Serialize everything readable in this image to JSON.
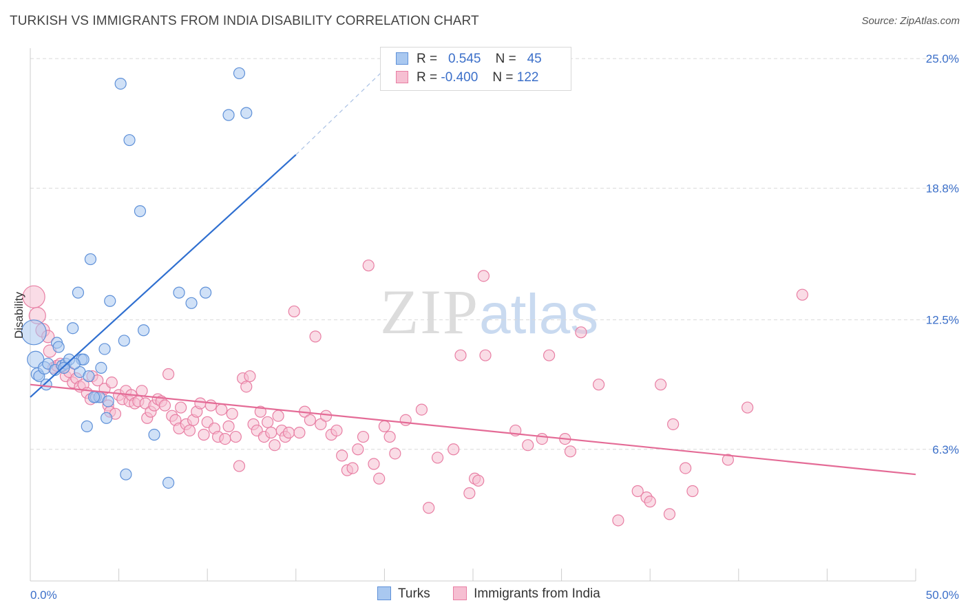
{
  "header": {
    "title": "TURKISH VS IMMIGRANTS FROM INDIA DISABILITY CORRELATION CHART",
    "source": "Source: ZipAtlas.com"
  },
  "watermark": {
    "zip": "ZIP",
    "atlas": "atlas"
  },
  "colors": {
    "turks_fill": "#a9c8f0",
    "turks_stroke": "#5e90d8",
    "turks_line": "#2f6fd0",
    "india_fill": "#f6bfd2",
    "india_stroke": "#e87ea3",
    "india_line": "#e46b96",
    "grid": "#d9d9d9",
    "axis_text": "#3b6fc9"
  },
  "legend": {
    "rows": [
      {
        "r_label": "R =",
        "r_value": "0.545",
        "n_label": "N =",
        "n_value": "45"
      },
      {
        "r_label": "R =",
        "r_value": "-0.400",
        "n_label": "N =",
        "n_value": "122"
      }
    ]
  },
  "bottom_legend": {
    "series1": "Turks",
    "series2": "Immigrants from India"
  },
  "chart_data": {
    "type": "scatter",
    "title": "TURKISH VS IMMIGRANTS FROM INDIA DISABILITY CORRELATION CHART",
    "ylabel": "Disability",
    "xlabel": "",
    "xlim": [
      0,
      50
    ],
    "ylim": [
      0,
      25.5
    ],
    "x_tick_labels": [
      "0.0%",
      "50.0%"
    ],
    "y_ticks": [
      6.3,
      12.5,
      18.8,
      25.0
    ],
    "y_tick_labels": [
      "6.3%",
      "12.5%",
      "18.8%",
      "25.0%"
    ],
    "grid": "horizontal dashed",
    "series": [
      {
        "name": "Turks",
        "R": 0.545,
        "N": 45,
        "trend": {
          "x": [
            0,
            15
          ],
          "y": [
            8.8,
            20.4
          ],
          "dashed_to": [
            21,
            25.3
          ]
        },
        "points": [
          [
            0.2,
            11.9,
            18
          ],
          [
            0.3,
            10.6,
            12
          ],
          [
            0.4,
            9.9,
            9
          ],
          [
            0.5,
            9.8,
            8
          ],
          [
            0.8,
            10.2,
            9
          ],
          [
            0.9,
            9.4,
            8
          ],
          [
            1.0,
            10.4,
            8
          ],
          [
            1.4,
            10.1,
            8
          ],
          [
            1.5,
            11.4,
            8
          ],
          [
            1.6,
            11.2,
            8
          ],
          [
            1.8,
            10.3,
            8
          ],
          [
            2.0,
            10.4,
            8
          ],
          [
            2.2,
            10.6,
            8
          ],
          [
            2.4,
            12.1,
            8
          ],
          [
            2.7,
            13.8,
            8
          ],
          [
            2.8,
            10.0,
            8
          ],
          [
            2.9,
            10.6,
            8
          ],
          [
            3.0,
            10.6,
            8
          ],
          [
            3.3,
            9.8,
            8
          ],
          [
            3.4,
            15.4,
            8
          ],
          [
            3.2,
            7.4,
            8
          ],
          [
            3.7,
            8.8,
            8
          ],
          [
            3.9,
            8.8,
            8
          ],
          [
            4.0,
            10.2,
            8
          ],
          [
            4.2,
            11.1,
            8
          ],
          [
            4.3,
            7.8,
            8
          ],
          [
            4.4,
            8.6,
            8
          ],
          [
            4.5,
            13.4,
            8
          ],
          [
            5.1,
            23.8,
            8
          ],
          [
            5.3,
            11.5,
            8
          ],
          [
            5.4,
            5.1,
            8
          ],
          [
            5.6,
            21.1,
            8
          ],
          [
            6.2,
            17.7,
            8
          ],
          [
            6.4,
            12.0,
            8
          ],
          [
            7.0,
            7.0,
            8
          ],
          [
            7.8,
            4.7,
            8
          ],
          [
            8.4,
            13.8,
            8
          ],
          [
            9.1,
            13.3,
            8
          ],
          [
            9.9,
            13.8,
            8
          ],
          [
            11.2,
            22.3,
            8
          ],
          [
            11.8,
            24.3,
            8
          ],
          [
            12.2,
            22.4,
            8
          ],
          [
            1.9,
            10.2,
            8
          ],
          [
            2.5,
            10.4,
            8
          ],
          [
            3.6,
            8.8,
            8
          ]
        ]
      },
      {
        "name": "Immigrants from India",
        "R": -0.4,
        "N": 122,
        "trend": {
          "x": [
            0,
            50
          ],
          "y": [
            9.4,
            5.1
          ]
        },
        "points": [
          [
            0.2,
            13.6,
            16
          ],
          [
            0.4,
            12.7,
            12
          ],
          [
            0.7,
            12.0,
            10
          ],
          [
            1.0,
            11.7,
            9
          ],
          [
            1.1,
            11.0,
            9
          ],
          [
            1.3,
            10.2,
            8
          ],
          [
            1.5,
            10.3,
            8
          ],
          [
            1.7,
            10.4,
            8
          ],
          [
            1.9,
            10.2,
            8
          ],
          [
            2.0,
            9.8,
            8
          ],
          [
            2.2,
            10.0,
            8
          ],
          [
            2.4,
            9.5,
            8
          ],
          [
            2.6,
            9.7,
            8
          ],
          [
            2.8,
            9.3,
            8
          ],
          [
            3.0,
            9.4,
            8
          ],
          [
            3.2,
            9.0,
            8
          ],
          [
            3.4,
            8.7,
            8
          ],
          [
            3.5,
            9.8,
            8
          ],
          [
            3.8,
            9.6,
            8
          ],
          [
            4.0,
            8.8,
            8
          ],
          [
            4.2,
            9.2,
            8
          ],
          [
            4.4,
            8.4,
            8
          ],
          [
            4.5,
            8.1,
            8
          ],
          [
            4.6,
            9.5,
            8
          ],
          [
            4.8,
            8.0,
            8
          ],
          [
            5.0,
            8.9,
            8
          ],
          [
            5.2,
            8.7,
            8
          ],
          [
            5.4,
            9.1,
            8
          ],
          [
            5.6,
            8.6,
            8
          ],
          [
            5.7,
            8.9,
            8
          ],
          [
            5.9,
            8.5,
            8
          ],
          [
            6.1,
            8.6,
            8
          ],
          [
            6.3,
            9.1,
            8
          ],
          [
            6.5,
            8.5,
            8
          ],
          [
            6.6,
            7.8,
            8
          ],
          [
            6.8,
            8.1,
            8
          ],
          [
            7.0,
            8.4,
            8
          ],
          [
            7.2,
            8.7,
            8
          ],
          [
            7.4,
            8.6,
            8
          ],
          [
            7.6,
            8.4,
            8
          ],
          [
            7.8,
            9.9,
            8
          ],
          [
            8.0,
            7.9,
            8
          ],
          [
            8.2,
            7.7,
            8
          ],
          [
            8.4,
            7.3,
            8
          ],
          [
            8.5,
            8.3,
            8
          ],
          [
            8.8,
            7.5,
            8
          ],
          [
            9.0,
            7.2,
            8
          ],
          [
            9.2,
            7.7,
            8
          ],
          [
            9.4,
            8.1,
            8
          ],
          [
            9.6,
            8.5,
            8
          ],
          [
            9.8,
            7.0,
            8
          ],
          [
            10.0,
            7.6,
            8
          ],
          [
            10.2,
            8.4,
            8
          ],
          [
            10.4,
            7.3,
            8
          ],
          [
            10.6,
            6.9,
            8
          ],
          [
            10.8,
            8.2,
            8
          ],
          [
            11.0,
            6.8,
            8
          ],
          [
            11.2,
            7.4,
            8
          ],
          [
            11.4,
            8.0,
            8
          ],
          [
            11.6,
            6.9,
            8
          ],
          [
            11.8,
            5.5,
            8
          ],
          [
            12.0,
            9.7,
            8
          ],
          [
            12.2,
            9.3,
            8
          ],
          [
            12.4,
            9.8,
            8
          ],
          [
            12.6,
            7.5,
            8
          ],
          [
            12.8,
            7.2,
            8
          ],
          [
            13.0,
            8.1,
            8
          ],
          [
            13.2,
            6.9,
            8
          ],
          [
            13.4,
            7.6,
            8
          ],
          [
            13.6,
            7.1,
            8
          ],
          [
            13.8,
            6.5,
            8
          ],
          [
            14.0,
            7.9,
            8
          ],
          [
            14.2,
            7.2,
            8
          ],
          [
            14.4,
            6.9,
            8
          ],
          [
            14.6,
            7.1,
            8
          ],
          [
            14.9,
            12.9,
            8
          ],
          [
            15.2,
            7.1,
            8
          ],
          [
            15.5,
            8.1,
            8
          ],
          [
            15.8,
            7.7,
            8
          ],
          [
            16.1,
            11.7,
            8
          ],
          [
            16.4,
            7.5,
            8
          ],
          [
            16.7,
            7.9,
            8
          ],
          [
            17.0,
            7.0,
            8
          ],
          [
            17.3,
            7.2,
            8
          ],
          [
            17.6,
            6.0,
            8
          ],
          [
            17.9,
            5.3,
            8
          ],
          [
            18.2,
            5.4,
            8
          ],
          [
            18.5,
            6.3,
            8
          ],
          [
            18.8,
            6.9,
            8
          ],
          [
            19.1,
            15.1,
            8
          ],
          [
            19.4,
            5.6,
            8
          ],
          [
            19.7,
            4.9,
            8
          ],
          [
            20.0,
            7.4,
            8
          ],
          [
            20.3,
            6.9,
            8
          ],
          [
            20.6,
            6.1,
            8
          ],
          [
            21.2,
            7.7,
            8
          ],
          [
            22.1,
            8.2,
            8
          ],
          [
            22.5,
            3.5,
            8
          ],
          [
            23.0,
            5.9,
            8
          ],
          [
            23.9,
            6.3,
            8
          ],
          [
            24.3,
            10.8,
            8
          ],
          [
            24.8,
            4.2,
            8
          ],
          [
            25.1,
            4.9,
            8
          ],
          [
            25.6,
            14.6,
            8
          ],
          [
            25.3,
            4.8,
            8
          ],
          [
            25.7,
            10.8,
            8
          ],
          [
            27.4,
            7.2,
            8
          ],
          [
            28.1,
            6.5,
            8
          ],
          [
            28.9,
            6.8,
            8
          ],
          [
            29.3,
            10.8,
            8
          ],
          [
            30.2,
            6.8,
            8
          ],
          [
            30.5,
            6.2,
            8
          ],
          [
            31.1,
            11.9,
            8
          ],
          [
            32.1,
            9.4,
            8
          ],
          [
            33.2,
            2.9,
            8
          ],
          [
            34.3,
            4.3,
            8
          ],
          [
            34.8,
            4.0,
            8
          ],
          [
            35.0,
            3.8,
            8
          ],
          [
            35.6,
            9.4,
            8
          ],
          [
            36.1,
            3.2,
            8
          ],
          [
            36.3,
            7.5,
            8
          ],
          [
            37.0,
            5.4,
            8
          ],
          [
            37.4,
            4.3,
            8
          ],
          [
            39.4,
            5.8,
            8
          ],
          [
            40.5,
            8.3,
            8
          ],
          [
            43.6,
            13.7,
            8
          ]
        ]
      }
    ]
  }
}
